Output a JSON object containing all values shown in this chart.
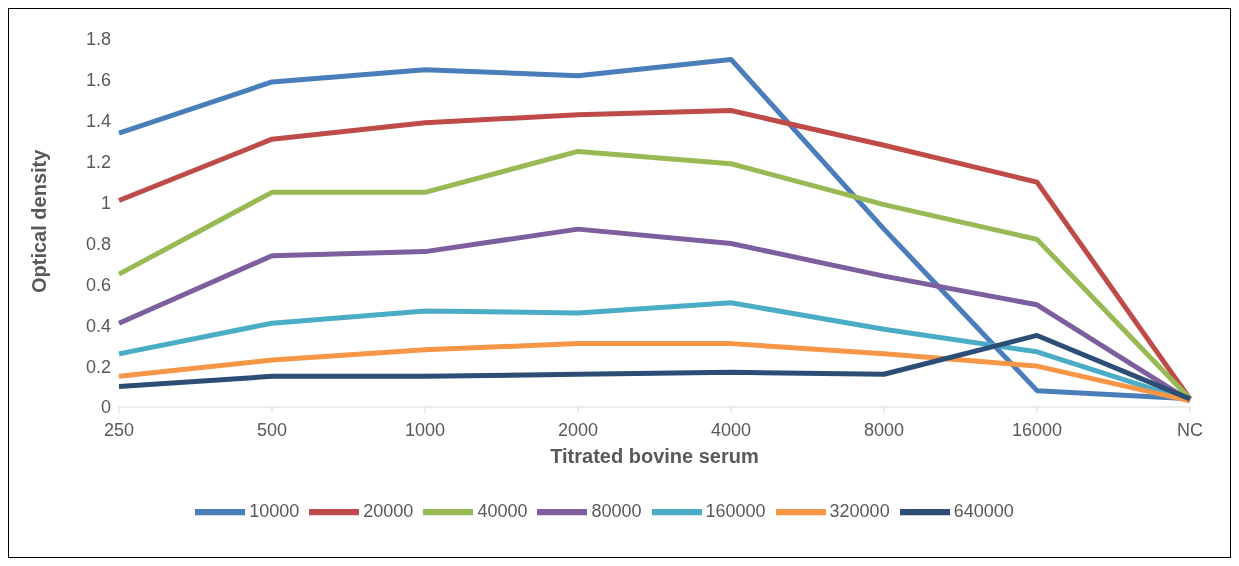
{
  "chart_data": {
    "type": "line",
    "xlabel": "Titrated bovine serum",
    "ylabel": "Optical density",
    "categories": [
      "250",
      "500",
      "1000",
      "2000",
      "4000",
      "8000",
      "16000",
      "NC"
    ],
    "ylim": [
      0,
      1.8
    ],
    "yticks": [
      0,
      0.2,
      0.4,
      0.6,
      0.8,
      1,
      1.2,
      1.4,
      1.6,
      1.8
    ],
    "grid": false,
    "legend": "bottom",
    "marker": "none",
    "line_style": "solid",
    "series": [
      {
        "name": "10000",
        "color": "#4a7ebb",
        "values": [
          1.34,
          1.59,
          1.65,
          1.62,
          1.7,
          0.87,
          0.08,
          0.04
        ]
      },
      {
        "name": "20000",
        "color": "#be4b48",
        "values": [
          1.01,
          1.31,
          1.39,
          1.43,
          1.45,
          1.28,
          1.1,
          0.04
        ]
      },
      {
        "name": "40000",
        "color": "#98b954",
        "values": [
          0.65,
          1.05,
          1.05,
          1.25,
          1.19,
          0.99,
          0.82,
          0.04
        ]
      },
      {
        "name": "80000",
        "color": "#7d5fa0",
        "values": [
          0.41,
          0.74,
          0.76,
          0.87,
          0.8,
          0.64,
          0.5,
          0.03
        ]
      },
      {
        "name": "160000",
        "color": "#4bacc6",
        "values": [
          0.26,
          0.41,
          0.47,
          0.46,
          0.51,
          0.38,
          0.27,
          0.03
        ]
      },
      {
        "name": "320000",
        "color": "#f79646",
        "values": [
          0.15,
          0.23,
          0.28,
          0.31,
          0.31,
          0.26,
          0.2,
          0.03
        ]
      },
      {
        "name": "640000",
        "color": "#2c4d75",
        "values": [
          0.1,
          0.15,
          0.15,
          0.16,
          0.17,
          0.16,
          0.35,
          0.04
        ]
      }
    ]
  }
}
